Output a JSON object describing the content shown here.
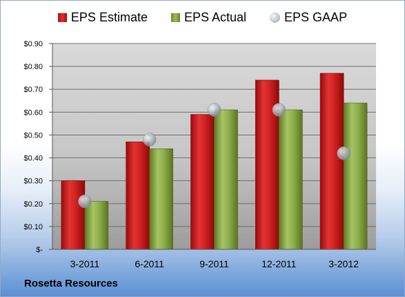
{
  "chart_data": {
    "type": "bar",
    "categories": [
      "3-2011",
      "6-2011",
      "9-2011",
      "12-2011",
      "3-2012"
    ],
    "series": [
      {
        "name": "EPS Estimate",
        "values": [
          0.3,
          0.47,
          0.59,
          0.74,
          0.77
        ],
        "color": "#c8191c"
      },
      {
        "name": "EPS Actual",
        "values": [
          0.21,
          0.44,
          0.61,
          0.61,
          0.64
        ],
        "color": "#8aaa46"
      },
      {
        "name": "EPS GAAP",
        "values": [
          0.21,
          0.48,
          0.61,
          0.61,
          0.42
        ],
        "color": "#aab2bb",
        "marker": "sphere"
      }
    ],
    "ylim": [
      0,
      0.9
    ],
    "yticks": [
      0,
      0.1,
      0.2,
      0.3,
      0.4,
      0.5,
      0.6,
      0.7,
      0.8,
      0.9
    ],
    "ytick_labels": [
      "$-",
      "$0.10",
      "$0.20",
      "$0.30",
      "$0.40",
      "$0.50",
      "$0.60",
      "$0.70",
      "$0.80",
      "$0.90"
    ],
    "grid": true,
    "legend_position": "top"
  },
  "footer": {
    "company": "Rosetta Resources"
  }
}
